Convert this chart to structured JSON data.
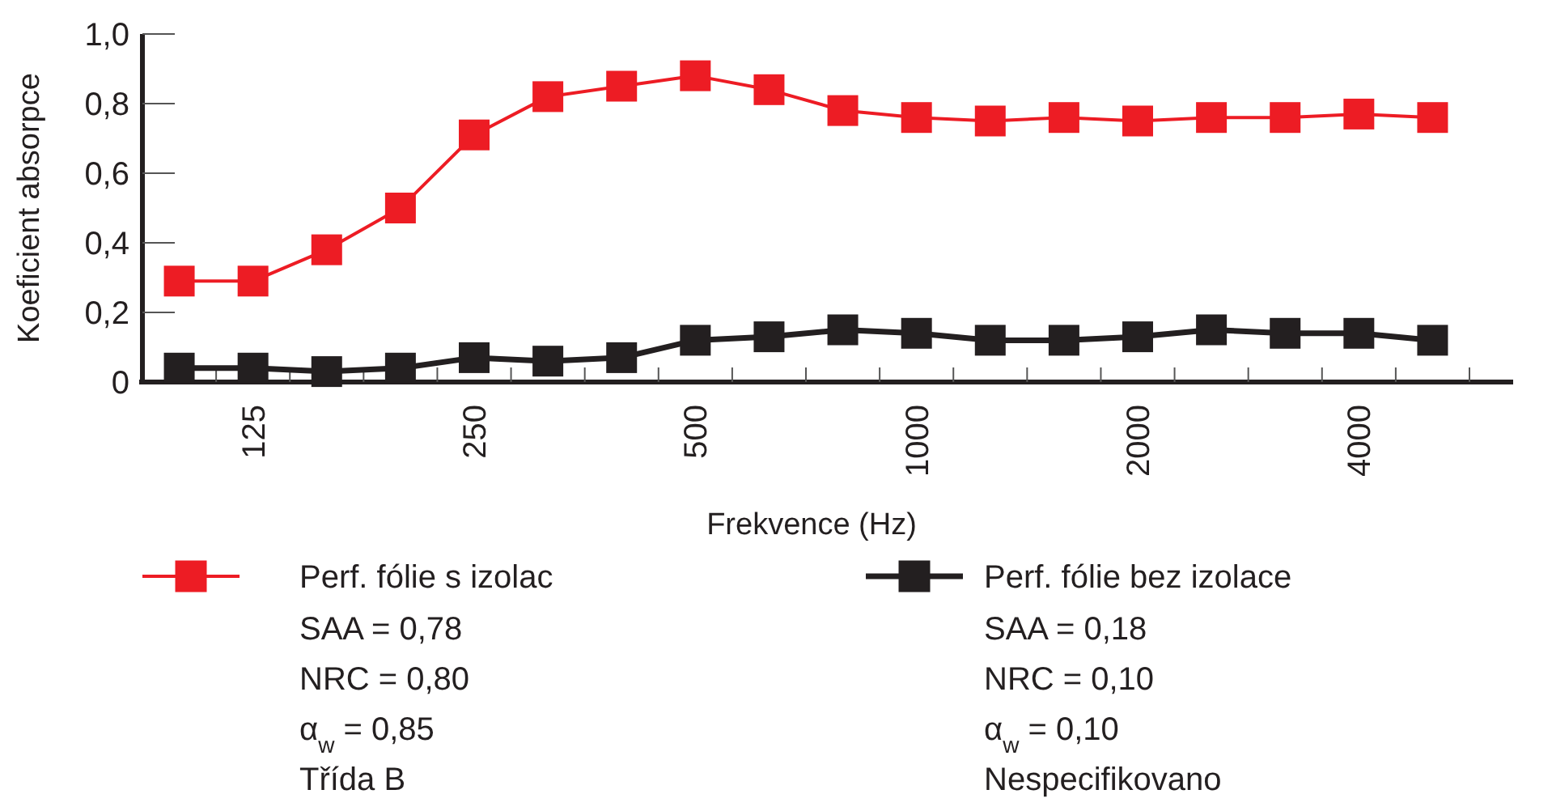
{
  "chart_data": {
    "type": "line",
    "xlabel": "Frekvence (Hz)",
    "ylabel": "Koeficient absorpce",
    "categories": [
      null,
      "125",
      null,
      null,
      "250",
      null,
      null,
      "500",
      null,
      null,
      "1000",
      null,
      null,
      "2000",
      null,
      null,
      "4000",
      null
    ],
    "series": [
      {
        "name": "Perf. fólie s izolac",
        "color": "#ed1c24",
        "values": [
          0.29,
          0.29,
          0.38,
          0.5,
          0.71,
          0.82,
          0.85,
          0.88,
          0.84,
          0.78,
          0.76,
          0.75,
          0.76,
          0.75,
          0.76,
          0.76,
          0.77,
          0.76
        ]
      },
      {
        "name": "Perf. fólie bez izolace",
        "color": "#231f20",
        "values": [
          0.04,
          0.04,
          0.03,
          0.04,
          0.07,
          0.06,
          0.07,
          0.12,
          0.13,
          0.15,
          0.14,
          0.12,
          0.12,
          0.13,
          0.15,
          0.14,
          0.14,
          0.12
        ]
      }
    ],
    "ylim": [
      0,
      1
    ],
    "yticks": [
      {
        "value": 0,
        "label": "0"
      },
      {
        "value": 0.2,
        "label": "0,2"
      },
      {
        "value": 0.4,
        "label": "0,4"
      },
      {
        "value": 0.6,
        "label": "0,6"
      },
      {
        "value": 0.8,
        "label": "0,8"
      },
      {
        "value": 1,
        "label": "1,0"
      }
    ],
    "annotations": [
      "SAA = 0,78",
      "NRC = 0,80",
      "α$_{w}$ = 0,85",
      "Třída B",
      "SAA = 0,18",
      "NRC = 0,10",
      "α$_{w}$ = 0,10",
      "Nespecifikovano"
    ],
    "marker": "square",
    "line_style": "solid",
    "legend": "bottom",
    "grid": false
  }
}
